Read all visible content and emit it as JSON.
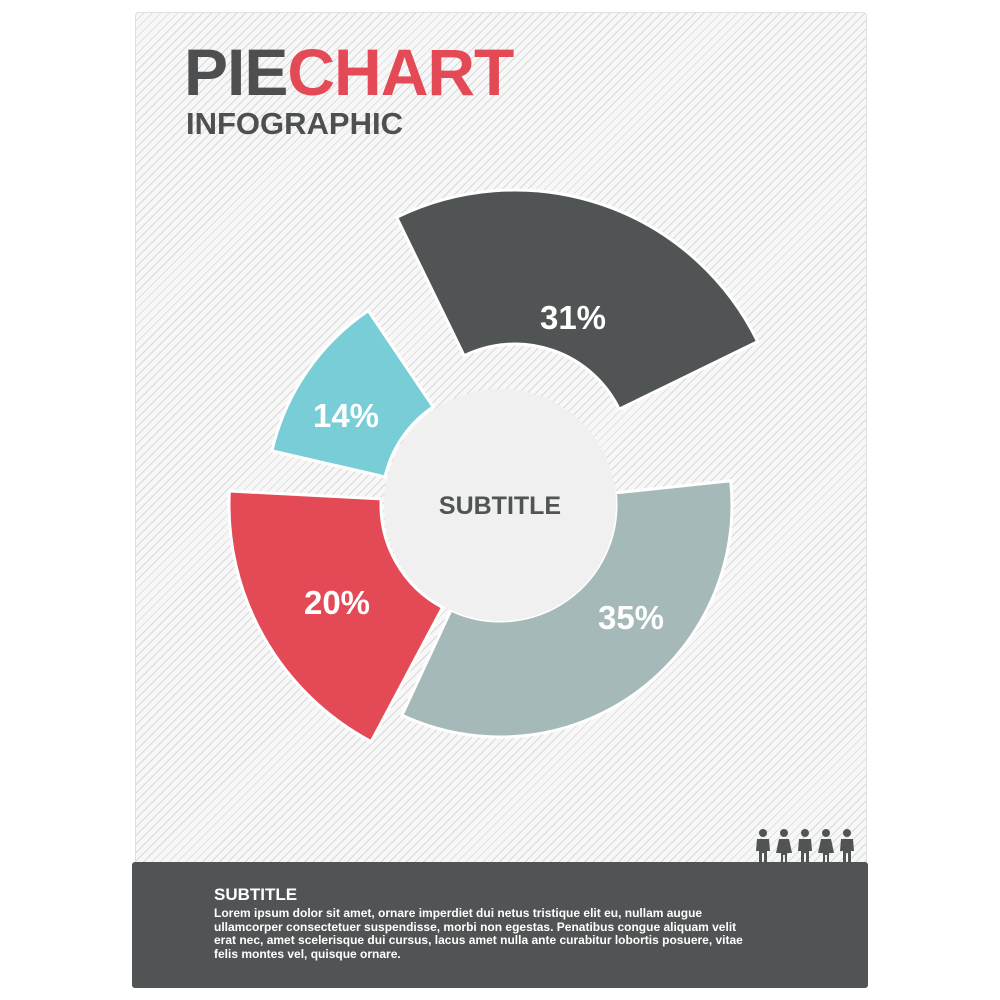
{
  "header": {
    "title_part1": "PIE",
    "title_part2": "CHART",
    "subtitle": "INFOGRAPHIC"
  },
  "chart_data": {
    "type": "pie",
    "style": "exploded donut",
    "center_label": "SUBTITLE",
    "slices": [
      {
        "label": "31%",
        "value": 31,
        "color": "#515455"
      },
      {
        "label": "35%",
        "value": 35,
        "color": "#a6b9b9"
      },
      {
        "label": "20%",
        "value": 20,
        "color": "#e44a55"
      },
      {
        "label": "14%",
        "value": 14,
        "color": "#78cdd7"
      }
    ]
  },
  "people_icons": {
    "icon": "people-group-icon",
    "count": 5
  },
  "footer": {
    "title": "SUBTITLE",
    "body": "Lorem ipsum dolor sit amet, ornare imperdiet dui netus tristique elit eu, nullam augue ullamcorper consectetuer suspendisse, morbi non egestas. Penatibus congue aliquam velit erat nec, amet scelerisque dui cursus, lacus amet nulla ante curabitur lobortis posuere, vitae felis montes vel, quisque ornare."
  },
  "colors": {
    "dark": "#515455",
    "accent": "#e44a55",
    "grey": "#a6b9b9",
    "teal": "#78cdd7",
    "center": "#f0f0f0"
  }
}
